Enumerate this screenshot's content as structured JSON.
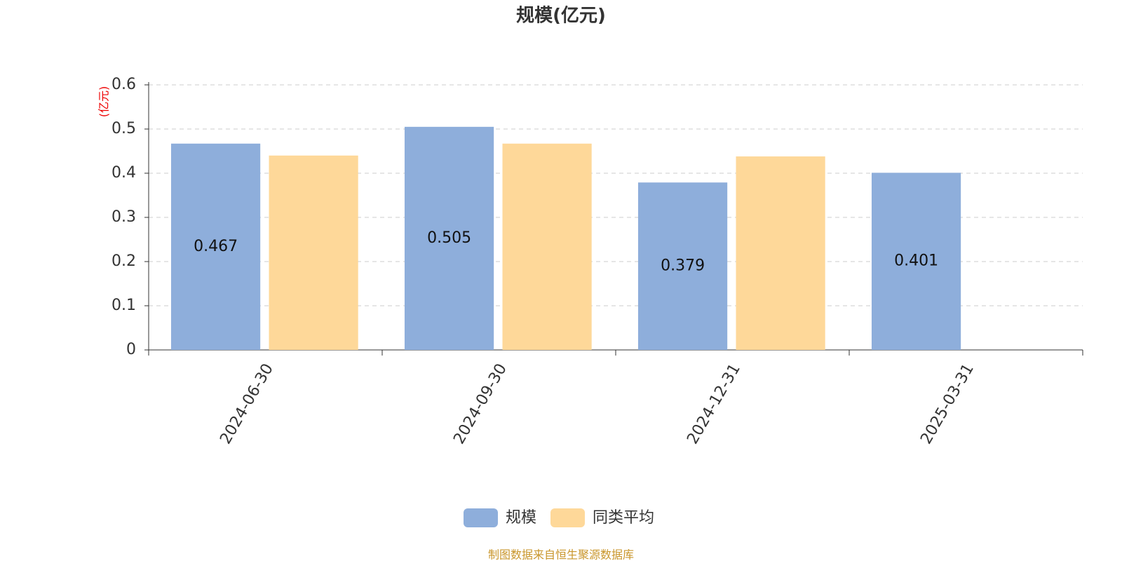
{
  "chart_data": {
    "type": "bar",
    "title": "规模(亿元)",
    "y_unit": "(亿元)",
    "categories": [
      "2024-06-30",
      "2024-09-30",
      "2024-12-31",
      "2025-03-31"
    ],
    "series": [
      {
        "name": "规模",
        "color": "#8eaedb",
        "values": [
          0.467,
          0.505,
          0.379,
          0.401
        ],
        "show_labels": true
      },
      {
        "name": "同类平均",
        "color": "#fed899",
        "values": [
          0.44,
          0.467,
          0.438,
          null
        ],
        "show_labels": false
      }
    ],
    "ylim": [
      0,
      0.6
    ],
    "yticks": [
      0,
      0.1,
      0.2,
      0.3,
      0.4,
      0.5,
      0.6
    ],
    "grid": true,
    "legend": "bottom",
    "source": "制图数据来自恒生聚源数据库"
  }
}
